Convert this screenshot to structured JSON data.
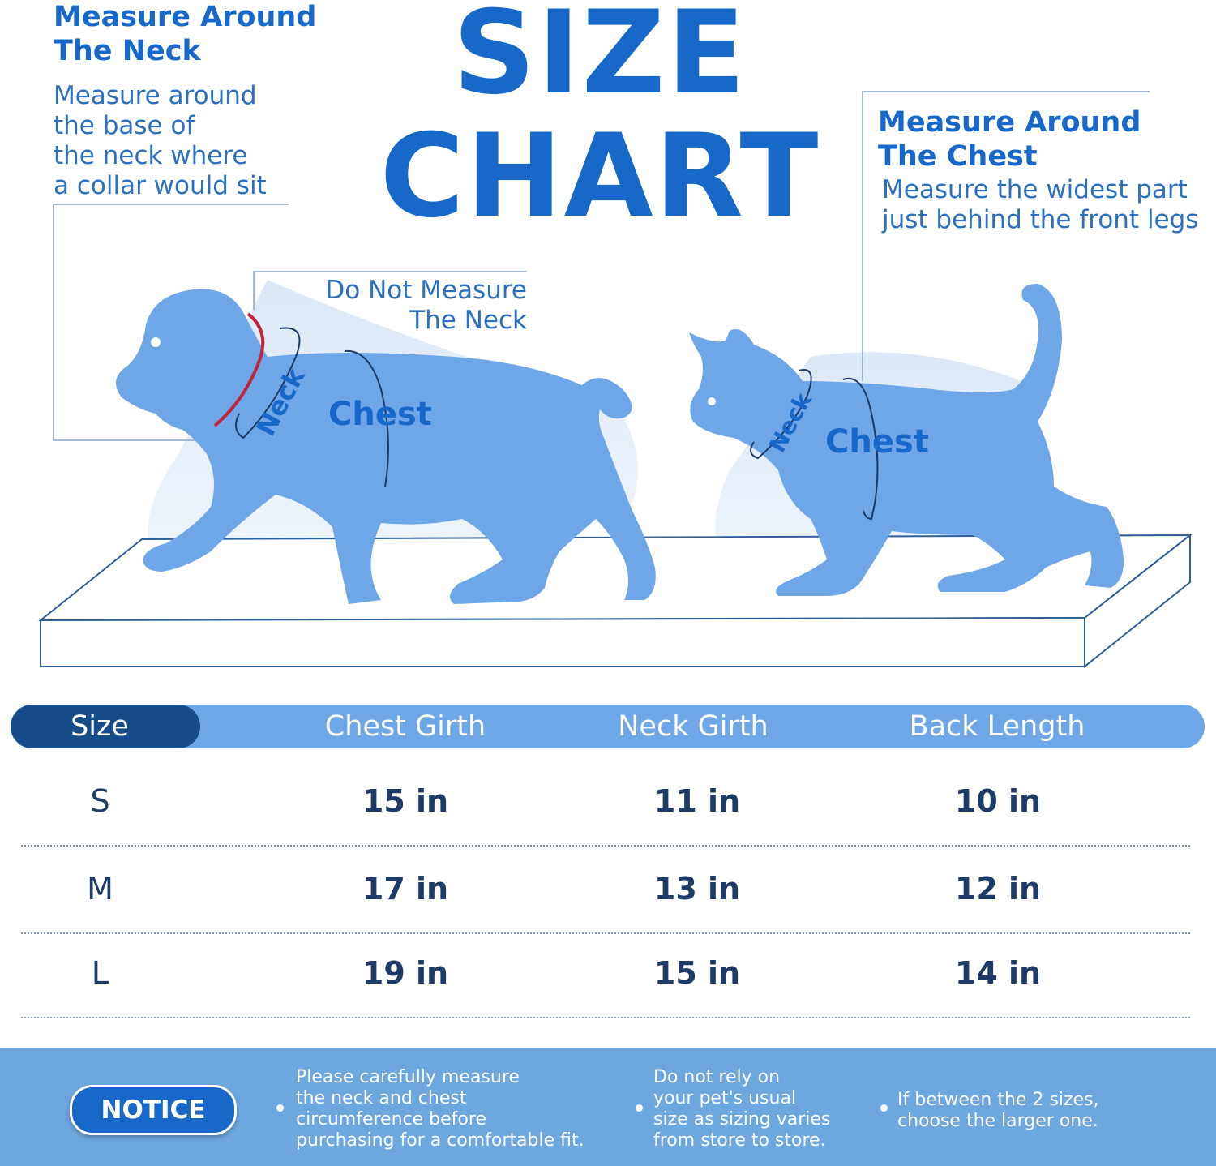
{
  "title": "SIZE CHART",
  "neck_guide": {
    "heading_lines": [
      "Measure Around",
      "The Neck"
    ],
    "desc_lines": [
      "Measure around",
      "the base of",
      "the neck where",
      "a collar would sit"
    ]
  },
  "chest_guide": {
    "heading_lines": [
      "Measure Around",
      "The Chest"
    ],
    "desc_lines": [
      "Measure the widest part",
      "just behind the front legs"
    ]
  },
  "do_not_measure": [
    "Do Not Measure",
    "The Neck"
  ],
  "figure_labels": {
    "dog_neck": "Neck",
    "dog_chest": "Chest",
    "cat_neck": "Neck",
    "cat_chest": "Chest"
  },
  "table": {
    "headers": [
      "Size",
      "Chest Girth",
      "Neck Girth",
      "Back Length"
    ],
    "rows": [
      [
        "S",
        "15 in",
        "11 in",
        "10 in"
      ],
      [
        "M",
        "17 in",
        "13 in",
        "12 in"
      ],
      [
        "L",
        "19 in",
        "15 in",
        "14 in"
      ]
    ]
  },
  "notice": {
    "badge": "NOTICE",
    "notes": [
      [
        "Please carefully measure",
        "the neck and chest",
        "circumference before",
        "purchasing for a comfortable fit."
      ],
      [
        "Do not rely on",
        "your pet's usual",
        "size as sizing varies",
        "from store to store."
      ],
      [
        "If between the 2 sizes,",
        "choose the larger one."
      ]
    ]
  },
  "colors": {
    "accent_blue": "#1768c8",
    "pet_blue": "#6ea6e8",
    "dark_navy": "#174c8a",
    "collar_red": "#c0263a"
  }
}
